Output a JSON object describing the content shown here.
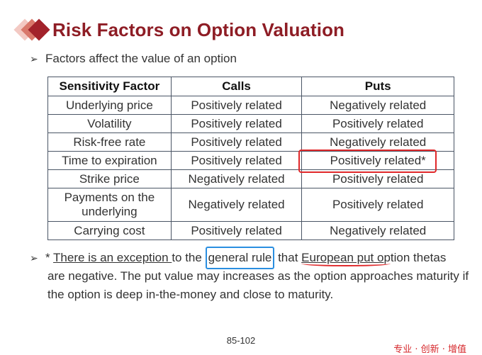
{
  "title": "Risk Factors on Option Valuation",
  "bullet1": "Factors affect the value of an option",
  "table": {
    "headers": [
      "Sensitivity Factor",
      "Calls",
      "Puts"
    ],
    "rows": [
      [
        "Underlying price",
        "Positively related",
        "Negatively related"
      ],
      [
        "Volatility",
        "Positively related",
        "Positively related"
      ],
      [
        "Risk-free rate",
        "Positively related",
        "Negatively related"
      ],
      [
        "Time to expiration",
        "Positively related",
        "Positively related*"
      ],
      [
        "Strike price",
        "Negatively related",
        "Positively related"
      ],
      [
        "Payments on the underlying",
        "Negatively related",
        "Positively related"
      ],
      [
        "Carrying cost",
        "Positively related",
        "Negatively related"
      ]
    ]
  },
  "note": {
    "star": "* ",
    "part1": "There is an exception ",
    "part2": "to the ",
    "part3": "general rule",
    "part4": " that ",
    "part5": "European put o",
    "part6": "ption thetas",
    "rest": "are negative. The put value may increases as the option approaches maturity if the option is deep in-the-money and close to maturity."
  },
  "page_number": "85-102",
  "tagline": "专业 · 创新 · 增值",
  "colors": {
    "title": "#8e1d25",
    "highlight_red": "#e0282a",
    "highlight_blue": "#2a8ee0"
  }
}
